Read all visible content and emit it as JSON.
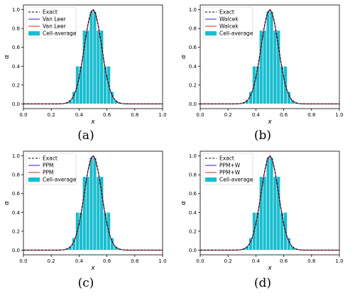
{
  "chart_data": [
    {
      "type": "line",
      "caption": "(a)",
      "xlabel": "x",
      "ylabel": "α",
      "xlim": [
        0.0,
        1.0
      ],
      "ylim": [
        -0.05,
        1.05
      ],
      "xticks": [
        "0.0",
        "0.2",
        "0.4",
        "0.6",
        "0.8",
        "1.0"
      ],
      "yticks": [
        "0.0",
        "0.2",
        "0.4",
        "0.6",
        "0.8",
        "1.0"
      ],
      "legend_position": "top-left",
      "bar_color": "#17becf",
      "series": [
        {
          "name": "Exact",
          "style": "dashed",
          "color": "#000000"
        },
        {
          "name": "Van Leer",
          "style": "solid",
          "color": "#1f1fcc"
        },
        {
          "name": "Van Leer",
          "style": "solid",
          "color": "#d62728"
        },
        {
          "name": "Cell-average",
          "style": "bar",
          "color": "#17becf"
        }
      ],
      "cells": {
        "x": [
          0.3125,
          0.3375,
          0.3625,
          0.3875,
          0.4125,
          0.4375,
          0.4625,
          0.4875,
          0.5125,
          0.5375,
          0.5625,
          0.5875,
          0.6125,
          0.6375,
          0.6625,
          0.6875
        ],
        "values": [
          0.02,
          0.04,
          0.13,
          0.4,
          0.4,
          0.78,
          0.78,
          0.98,
          0.98,
          0.78,
          0.78,
          0.4,
          0.4,
          0.13,
          0.04,
          0.02
        ]
      }
    },
    {
      "type": "line",
      "caption": "(b)",
      "xlabel": "x",
      "ylabel": "α",
      "xlim": [
        0.0,
        1.0
      ],
      "ylim": [
        -0.05,
        1.05
      ],
      "xticks": [
        "0.0",
        "0.2",
        "0.4",
        "0.6",
        "0.8",
        "1.0"
      ],
      "yticks": [
        "0.0",
        "0.2",
        "0.4",
        "0.6",
        "0.8",
        "1.0"
      ],
      "legend_position": "top-left",
      "bar_color": "#17becf",
      "series": [
        {
          "name": "Exact",
          "style": "dashed",
          "color": "#000000"
        },
        {
          "name": "Walcek",
          "style": "solid",
          "color": "#1f1fcc"
        },
        {
          "name": "Walcek",
          "style": "solid",
          "color": "#d62728"
        },
        {
          "name": "Cell-average",
          "style": "bar",
          "color": "#17becf"
        }
      ],
      "cells": {
        "x": [
          0.3125,
          0.3375,
          0.3625,
          0.3875,
          0.4125,
          0.4375,
          0.4625,
          0.4875,
          0.5125,
          0.5375,
          0.5625,
          0.5875,
          0.6125,
          0.6375,
          0.6625,
          0.6875
        ],
        "values": [
          0.02,
          0.04,
          0.13,
          0.4,
          0.4,
          0.78,
          0.78,
          0.98,
          0.98,
          0.78,
          0.78,
          0.4,
          0.4,
          0.13,
          0.04,
          0.02
        ]
      }
    },
    {
      "type": "line",
      "caption": "(c)",
      "xlabel": "x",
      "ylabel": "α",
      "xlim": [
        0.0,
        1.0
      ],
      "ylim": [
        -0.05,
        1.05
      ],
      "xticks": [
        "0.0",
        "0.2",
        "0.4",
        "0.6",
        "0.8",
        "1.0"
      ],
      "yticks": [
        "0.0",
        "0.2",
        "0.4",
        "0.6",
        "0.8",
        "1.0"
      ],
      "legend_position": "top-left",
      "bar_color": "#17becf",
      "series": [
        {
          "name": "Exact",
          "style": "dashed",
          "color": "#000000"
        },
        {
          "name": "PPM",
          "style": "solid",
          "color": "#1f1fcc"
        },
        {
          "name": "PPM",
          "style": "solid",
          "color": "#d62728"
        },
        {
          "name": "Cell-average",
          "style": "bar",
          "color": "#17becf"
        }
      ],
      "cells": {
        "x": [
          0.3125,
          0.3375,
          0.3625,
          0.3875,
          0.4125,
          0.4375,
          0.4625,
          0.4875,
          0.5125,
          0.5375,
          0.5625,
          0.5875,
          0.6125,
          0.6375,
          0.6625,
          0.6875
        ],
        "values": [
          0.02,
          0.04,
          0.13,
          0.4,
          0.4,
          0.78,
          0.78,
          0.98,
          0.98,
          0.78,
          0.78,
          0.4,
          0.4,
          0.13,
          0.04,
          0.02
        ]
      }
    },
    {
      "type": "line",
      "caption": "(d)",
      "xlabel": "x",
      "ylabel": "α",
      "xlim": [
        0.0,
        1.0
      ],
      "ylim": [
        -0.05,
        1.05
      ],
      "xticks": [
        "0.0",
        "0.2",
        "0.4",
        "0.6",
        "0.8",
        "1.0"
      ],
      "yticks": [
        "0.0",
        "0.2",
        "0.4",
        "0.6",
        "0.8",
        "1.0"
      ],
      "legend_position": "top-left",
      "bar_color": "#17becf",
      "series": [
        {
          "name": "Exact",
          "style": "dashed",
          "color": "#000000"
        },
        {
          "name": "PPM+W",
          "style": "solid",
          "color": "#1f1fcc"
        },
        {
          "name": "PPM+W",
          "style": "solid",
          "color": "#d62728"
        },
        {
          "name": "Cell-average",
          "style": "bar",
          "color": "#17becf"
        }
      ],
      "cells": {
        "x": [
          0.3125,
          0.3375,
          0.3625,
          0.3875,
          0.4125,
          0.4375,
          0.4625,
          0.4875,
          0.5125,
          0.5375,
          0.5625,
          0.5875,
          0.6125,
          0.6375,
          0.6625,
          0.6875
        ],
        "values": [
          0.02,
          0.04,
          0.13,
          0.4,
          0.4,
          0.78,
          0.78,
          0.98,
          0.98,
          0.78,
          0.78,
          0.4,
          0.4,
          0.13,
          0.04,
          0.02
        ]
      }
    }
  ]
}
